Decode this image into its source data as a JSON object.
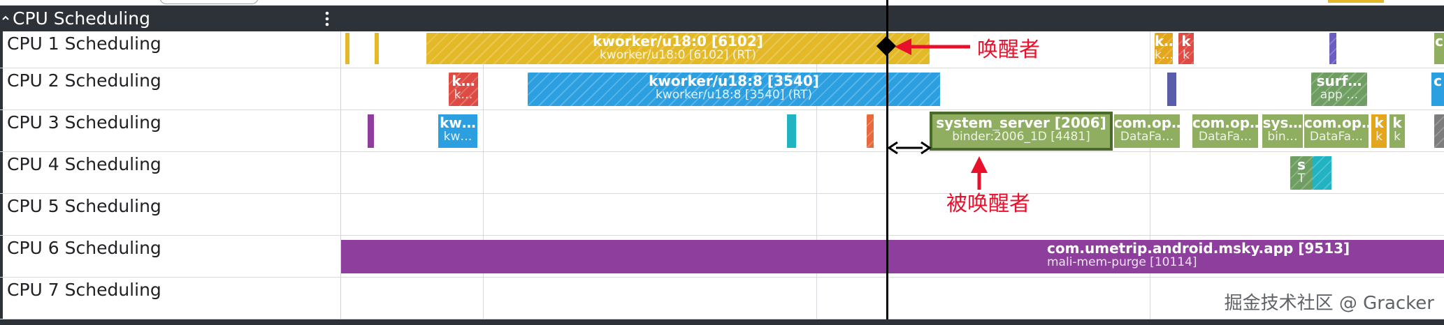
{
  "panel": {
    "title": "CPU Scheduling",
    "collapse_icon": "chevron-up-icon",
    "menu_icon": "kebab-menu-icon"
  },
  "rows": [
    {
      "label": "CPU 1 Scheduling"
    },
    {
      "label": "CPU 2 Scheduling"
    },
    {
      "label": "CPU 3 Scheduling"
    },
    {
      "label": "CPU 4 Scheduling"
    },
    {
      "label": "CPU 5 Scheduling"
    },
    {
      "label": "CPU 6 Scheduling"
    },
    {
      "label": "CPU 7 Scheduling"
    }
  ],
  "slices": {
    "cpu1_main": {
      "title": "kworker/u18:0 [6102]",
      "sub": "kworker/u18:0 [6102] (RT)",
      "color": "#e3b928"
    },
    "cpu1_k1": {
      "title": "k…",
      "sub": "k…",
      "color": "#e3a61c"
    },
    "cpu1_k2": {
      "title": "k",
      "sub": "k",
      "color": "#dd4b43"
    },
    "cpu1_c": {
      "title": "c",
      "sub": "",
      "color": "#8fae60"
    },
    "cpu2_k": {
      "title": "k…",
      "sub": "k…",
      "color": "#dd4b43"
    },
    "cpu2_main": {
      "title": "kworker/u18:8 [3540]",
      "sub": "kworker/u18:8 [3540] (RT)",
      "color": "#2b9fe0"
    },
    "cpu2_surf": {
      "title": "surf…",
      "sub": "app …",
      "color": "#6f9e62"
    },
    "cpu2_c": {
      "title": "c",
      "sub": "",
      "color": "#2b9fe0"
    },
    "cpu3_kw": {
      "title": "kw…",
      "sub": "kw…",
      "color": "#2b9fe0"
    },
    "cpu3_main": {
      "title": "system_server [2006]",
      "sub": "binder:2006_1D [4481]",
      "color": "#8fae60"
    },
    "cpu3_comop1": {
      "title": "com.op…",
      "sub": "DataFa…",
      "color": "#8fae60"
    },
    "cpu3_comop2": {
      "title": "com.op…",
      "sub": "DataFa…",
      "color": "#8fae60"
    },
    "cpu3_sys": {
      "title": "sys…",
      "sub": "bin…",
      "color": "#8fae60"
    },
    "cpu3_comop3": {
      "title": "com.op…",
      "sub": "DataFa…",
      "color": "#8fae60"
    },
    "cpu3_k1": {
      "title": "k",
      "sub": "k",
      "color": "#e3a61c"
    },
    "cpu3_k2": {
      "title": "k",
      "sub": "k",
      "color": "#8fae60"
    },
    "cpu4_s": {
      "title": "s",
      "sub": "T",
      "color": "#6f9e62"
    },
    "cpu6_main": {
      "title": "com.umetrip.android.msky.app [9513]",
      "sub": "mali-mem-purge [10114]",
      "color": "#8e3f9e"
    }
  },
  "annotations": {
    "waker": "唤醒者",
    "wakee": "被唤醒者",
    "color": "#e8102b"
  },
  "watermark": "掘金技术社区 @ Gracker"
}
